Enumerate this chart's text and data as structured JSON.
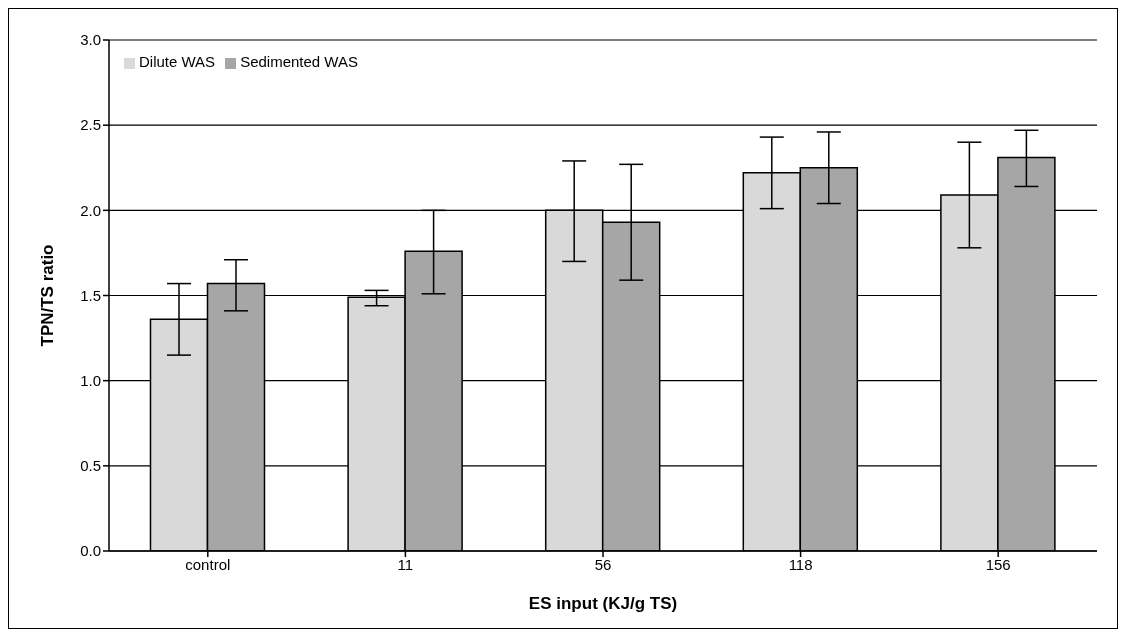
{
  "chart_data": {
    "type": "bar",
    "xlabel": "ES input (KJ/g TS)",
    "ylabel": "TPN/TS ratio",
    "categories": [
      "control",
      "11",
      "56",
      "118",
      "156"
    ],
    "series": [
      {
        "name": "Dilute WAS",
        "color": "#d9d9d9",
        "values": [
          1.36,
          1.49,
          2.0,
          2.22,
          2.09
        ],
        "errors": [
          [
            1.15,
            1.57
          ],
          [
            1.44,
            1.53
          ],
          [
            1.7,
            2.29
          ],
          [
            2.01,
            2.43
          ],
          [
            1.78,
            2.4
          ]
        ]
      },
      {
        "name": "Sedimented WAS",
        "color": "#a6a6a6",
        "values": [
          1.57,
          1.76,
          1.93,
          2.25,
          2.31
        ],
        "errors": [
          [
            1.41,
            1.71
          ],
          [
            1.51,
            2.0
          ],
          [
            1.59,
            2.27
          ],
          [
            2.04,
            2.46
          ],
          [
            2.14,
            2.47
          ]
        ]
      }
    ],
    "ylim": [
      0,
      3
    ],
    "yticks": [
      {
        "value": 0,
        "label": "0.0"
      },
      {
        "value": 0.5,
        "label": "0.5"
      },
      {
        "value": 1,
        "label": "1.0"
      },
      {
        "value": 1.5,
        "label": "1.5"
      },
      {
        "value": 2,
        "label": "2.0"
      },
      {
        "value": 2.5,
        "label": "2.5"
      },
      {
        "value": 3,
        "label": "3.0"
      }
    ],
    "grid": "y",
    "legend": "top left"
  }
}
